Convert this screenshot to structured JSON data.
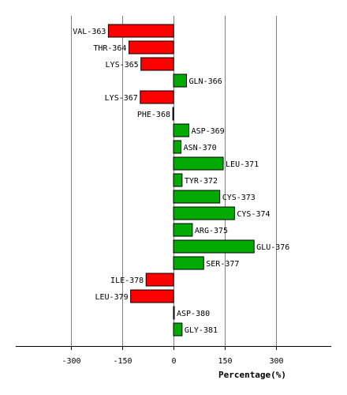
{
  "chart_data": {
    "type": "bar",
    "orientation": "horizontal",
    "xlabel": "Percentage(%)",
    "xlim": [
      -460,
      460
    ],
    "xticks": [
      -300,
      -150,
      0,
      150,
      300
    ],
    "grid": true,
    "colors": {
      "positive": "#00aa00",
      "negative": "#ff0000",
      "grid": "#808080",
      "axis": "#000000"
    },
    "categories": [
      "VAL-363",
      "THR-364",
      "LYS-365",
      "GLN-366",
      "LYS-367",
      "PHE-368",
      "ASP-369",
      "ASN-370",
      "LEU-371",
      "TYR-372",
      "CYS-373",
      "CYS-374",
      "ARG-375",
      "GLU-376",
      "SER-377",
      "ILE-378",
      "LEU-379",
      "ASP-380",
      "GLY-381"
    ],
    "values": [
      -190,
      -130,
      -95,
      38,
      -97,
      -2,
      45,
      22,
      145,
      25,
      135,
      178,
      55,
      235,
      88,
      -80,
      -125,
      2,
      25
    ]
  }
}
